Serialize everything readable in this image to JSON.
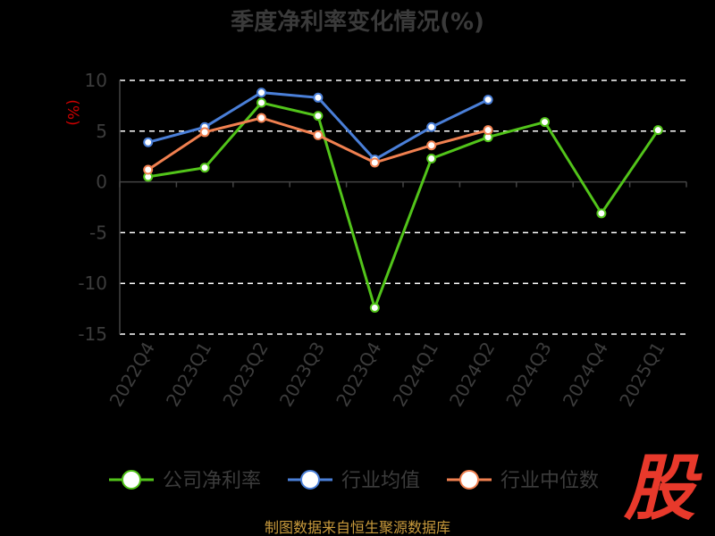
{
  "chart_data": {
    "type": "line",
    "title": "季度净利率变化情况(%)",
    "ylabel": "(%)",
    "xlabel": "",
    "categories": [
      "2022Q4",
      "2023Q1",
      "2023Q2",
      "2023Q3",
      "2023Q4",
      "2024Q1",
      "2024Q2",
      "2024Q3",
      "2024Q4",
      "2025Q1"
    ],
    "ylim": [
      -15,
      10
    ],
    "yticks": [
      10,
      5,
      0,
      -5,
      -10,
      -15
    ],
    "grid": true,
    "legend_position": "bottom",
    "series": [
      {
        "name": "公司净利率",
        "color": "#52c41a",
        "values": [
          0.5,
          1.4,
          7.8,
          6.5,
          -12.4,
          2.3,
          4.4,
          5.9,
          -3.1,
          5.1
        ]
      },
      {
        "name": "行业均值",
        "color": "#4a7fd8",
        "values": [
          3.9,
          5.4,
          8.8,
          8.3,
          2.2,
          5.4,
          8.1,
          null,
          null,
          null
        ]
      },
      {
        "name": "行业中位数",
        "color": "#f08050",
        "values": [
          1.2,
          4.9,
          6.3,
          4.6,
          1.9,
          3.6,
          5.1,
          null,
          null,
          null
        ]
      }
    ]
  },
  "source": "制图数据来自恒生聚源数据库",
  "brand": "股"
}
